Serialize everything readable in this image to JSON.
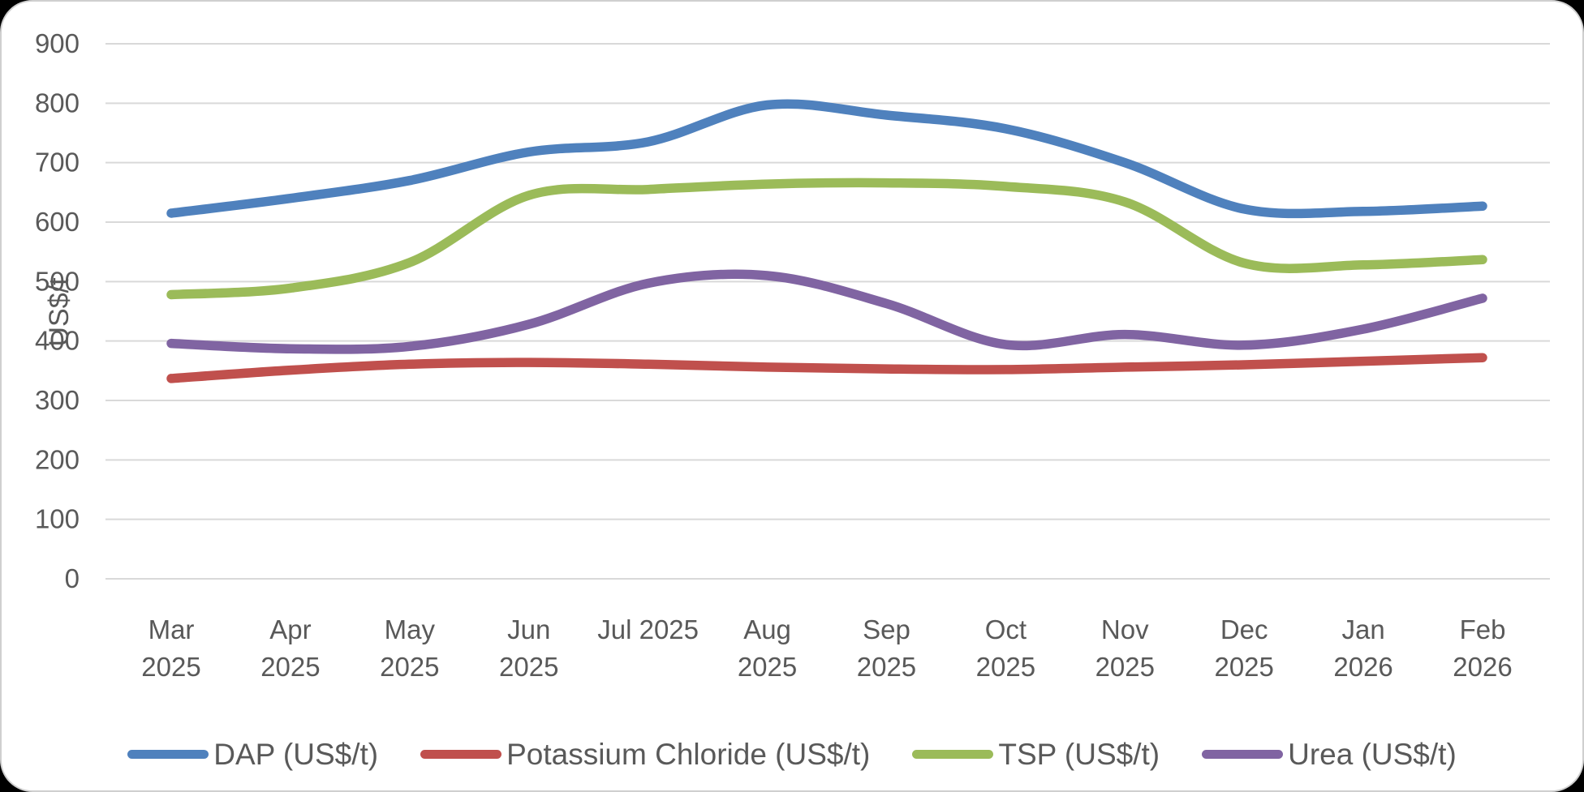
{
  "chart": {
    "y_axis": {
      "title": "US$/t",
      "ticks": [
        900,
        800,
        700,
        600,
        500,
        400,
        300,
        200,
        100,
        0
      ]
    },
    "x_axis": {
      "labels": [
        [
          "Mar",
          "2025"
        ],
        [
          "Apr",
          "2025"
        ],
        [
          "May",
          "2025"
        ],
        [
          "Jun",
          "2025"
        ],
        [
          "Jul 2025",
          ""
        ],
        [
          "Aug",
          "2025"
        ],
        [
          "Sep",
          "2025"
        ],
        [
          "Oct",
          "2025"
        ],
        [
          "Nov",
          "2025"
        ],
        [
          "Dec",
          "2025"
        ],
        [
          "Jan",
          "2026"
        ],
        [
          "Feb",
          "2026"
        ]
      ]
    },
    "legend": [
      {
        "label": "DAP (US$/t)",
        "color": "#4F81BD"
      },
      {
        "label": "Potassium Chloride (US$/t)",
        "color": "#C0504D"
      },
      {
        "label": "TSP (US$/t)",
        "color": "#9BBB59"
      },
      {
        "label": "Urea (US$/t)",
        "color": "#8064A2"
      }
    ]
  },
  "chart_data": {
    "type": "line",
    "title": "",
    "smooth": true,
    "grid": true,
    "legend_position": "bottom",
    "ylabel": "US$/t",
    "ylim": [
      0,
      900
    ],
    "ytick_step": 100,
    "categories": [
      "Mar 2025",
      "Apr 2025",
      "May 2025",
      "Jun 2025",
      "Jul 2025",
      "Aug 2025",
      "Sep 2025",
      "Oct 2025",
      "Nov 2025",
      "Dec 2025",
      "Jan 2026",
      "Feb 2026"
    ],
    "series": [
      {
        "name": "DAP (US$/t)",
        "color": "#4F81BD",
        "values": [
          615,
          640,
          670,
          718,
          735,
          797,
          780,
          757,
          700,
          622,
          618,
          627
        ]
      },
      {
        "name": "Potassium Chloride (US$/t)",
        "color": "#C0504D",
        "values": [
          337,
          351,
          361,
          364,
          361,
          356,
          353,
          352,
          356,
          360,
          366,
          372
        ]
      },
      {
        "name": "TSP (US$/t)",
        "color": "#9BBB59",
        "values": [
          478,
          489,
          532,
          645,
          655,
          664,
          666,
          660,
          634,
          531,
          528,
          537
        ]
      },
      {
        "name": "Urea (US$/t)",
        "color": "#8064A2",
        "values": [
          396,
          387,
          391,
          428,
          497,
          510,
          463,
          394,
          411,
          393,
          420,
          472
        ]
      }
    ]
  }
}
